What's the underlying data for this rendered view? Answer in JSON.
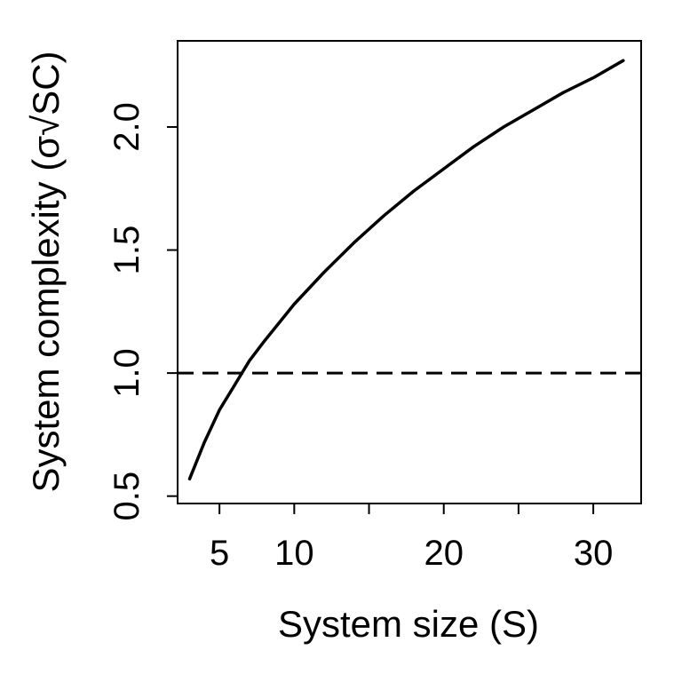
{
  "chart_data": {
    "type": "line",
    "title": "",
    "xlabel": "System size (S)",
    "ylabel": "System complexity (σ√SC)",
    "xlim": [
      2.2,
      33.2
    ],
    "ylim": [
      0.47,
      2.35
    ],
    "x_ticks": [
      5,
      10,
      15,
      20,
      25,
      30
    ],
    "x_tick_labels": [
      "5",
      "10",
      "",
      "20",
      "",
      "30"
    ],
    "y_ticks": [
      0.5,
      1.0,
      1.5,
      2.0
    ],
    "y_tick_labels": [
      "0.5",
      "1.0",
      "1.5",
      "2.0"
    ],
    "series": [
      {
        "style": "solid",
        "color": "#000000",
        "x": [
          3,
          4,
          5,
          6,
          7,
          8,
          10,
          12,
          14,
          16,
          18,
          20,
          22,
          24,
          26,
          28,
          30,
          32
        ],
        "y": [
          0.57,
          0.72,
          0.85,
          0.95,
          1.05,
          1.13,
          1.28,
          1.41,
          1.53,
          1.64,
          1.74,
          1.83,
          1.92,
          2.0,
          2.07,
          2.14,
          2.2,
          2.27
        ]
      }
    ],
    "reference_lines": [
      {
        "orientation": "horizontal",
        "y": 1.0,
        "style": "dashed",
        "color": "#000000"
      }
    ],
    "grid": false,
    "legend": "none"
  }
}
